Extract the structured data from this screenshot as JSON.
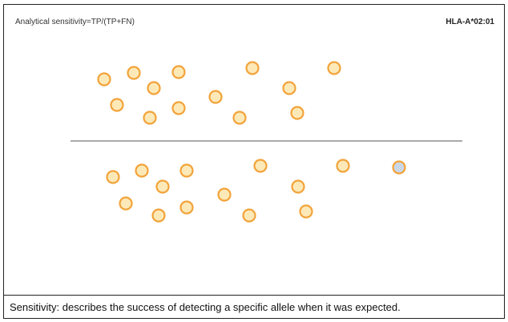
{
  "panel": {
    "title": "Analytical sensitivity=TP/(TP+FN)",
    "allele": "HLA-A*02:01"
  },
  "caption": "Sensitivity: describes the success of detecting a specific allele when it was expected.",
  "colors": {
    "circle_stroke": "#F2A33A",
    "circle_fill": "#FDE9B8",
    "highlight_fill": "#C9D7E8",
    "divider": "#555555"
  },
  "groups": [
    {
      "name": "upper",
      "count": 14
    },
    {
      "name": "lower",
      "count": 15,
      "highlighted": 1
    }
  ]
}
